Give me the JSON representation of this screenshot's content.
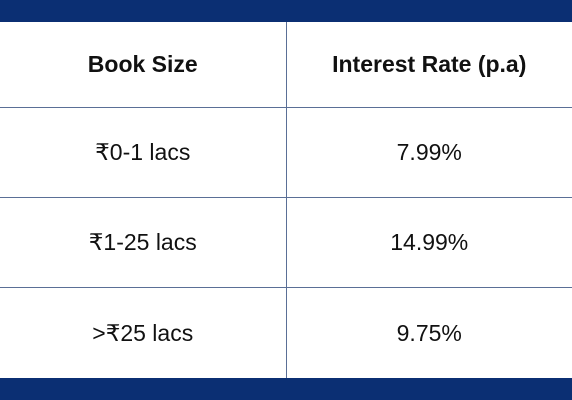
{
  "table": {
    "headers": [
      "Book Size",
      "Interest Rate (p.a)"
    ],
    "rows": [
      [
        "₹0-1 lacs",
        "7.99%"
      ],
      [
        "₹1-25 lacs",
        "14.99%"
      ],
      [
        ">₹25 lacs",
        "9.75%"
      ]
    ]
  },
  "colors": {
    "accent_bar": "#0b2f73",
    "grid_line": "#5a6f96"
  }
}
